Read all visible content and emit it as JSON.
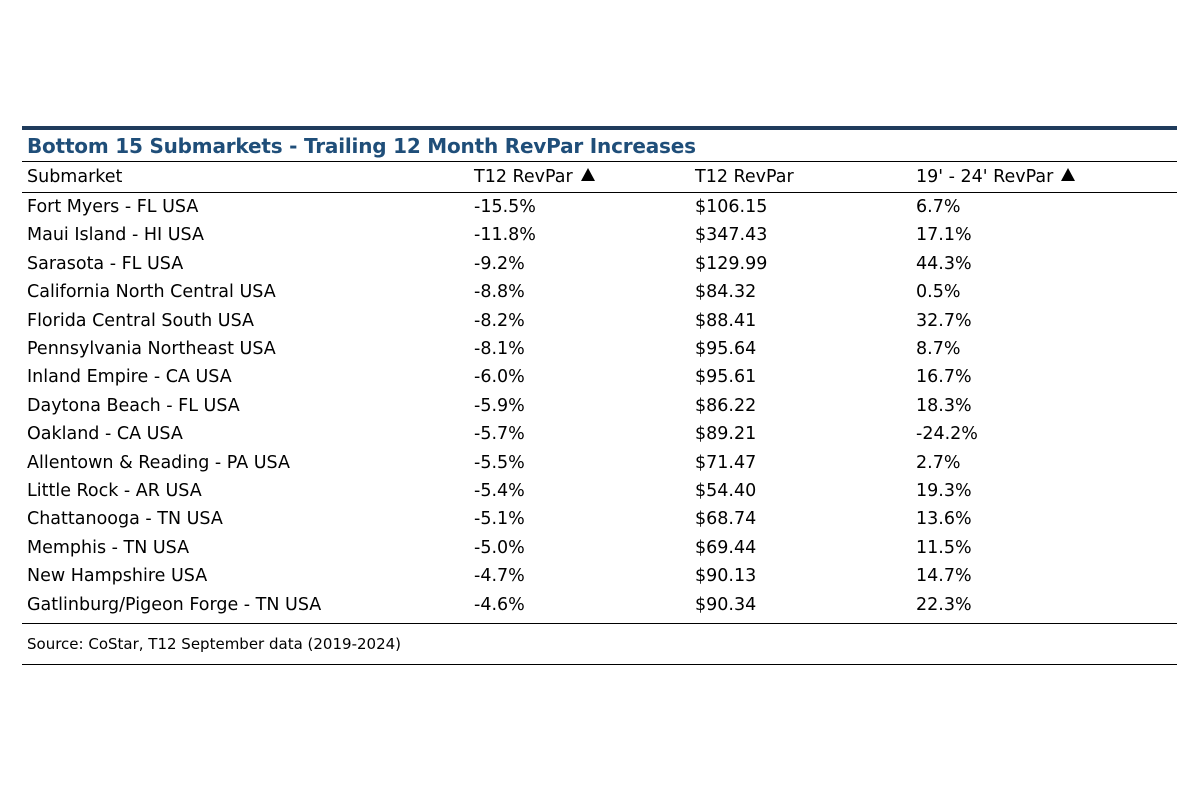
{
  "chart_data": {
    "type": "table",
    "title": "Bottom 15 Submarkets - Trailing 12 Month RevPar Increases",
    "columns": [
      {
        "label": "Submarket",
        "sort_indicator": false
      },
      {
        "label": "T12 RevPar",
        "sort_indicator": true
      },
      {
        "label": "T12 RevPar",
        "sort_indicator": false
      },
      {
        "label": "19' - 24' RevPar",
        "sort_indicator": true
      }
    ],
    "sort_indicator_icon": "triangle-up-icon",
    "rows": [
      {
        "submarket": "Fort Myers - FL USA",
        "t12_revpar_change": "-15.5%",
        "t12_revpar": "$106.15",
        "revpar_19_24": "6.7%"
      },
      {
        "submarket": "Maui Island - HI USA",
        "t12_revpar_change": "-11.8%",
        "t12_revpar": "$347.43",
        "revpar_19_24": "17.1%"
      },
      {
        "submarket": "Sarasota - FL USA",
        "t12_revpar_change": "-9.2%",
        "t12_revpar": "$129.99",
        "revpar_19_24": "44.3%"
      },
      {
        "submarket": "California North Central USA",
        "t12_revpar_change": "-8.8%",
        "t12_revpar": "$84.32",
        "revpar_19_24": "0.5%"
      },
      {
        "submarket": "Florida Central South USA",
        "t12_revpar_change": "-8.2%",
        "t12_revpar": "$88.41",
        "revpar_19_24": "32.7%"
      },
      {
        "submarket": "Pennsylvania Northeast USA",
        "t12_revpar_change": "-8.1%",
        "t12_revpar": "$95.64",
        "revpar_19_24": "8.7%"
      },
      {
        "submarket": "Inland Empire - CA USA",
        "t12_revpar_change": "-6.0%",
        "t12_revpar": "$95.61",
        "revpar_19_24": "16.7%"
      },
      {
        "submarket": "Daytona Beach - FL USA",
        "t12_revpar_change": "-5.9%",
        "t12_revpar": "$86.22",
        "revpar_19_24": "18.3%"
      },
      {
        "submarket": "Oakland - CA USA",
        "t12_revpar_change": "-5.7%",
        "t12_revpar": "$89.21",
        "revpar_19_24": "-24.2%"
      },
      {
        "submarket": "Allentown & Reading - PA USA",
        "t12_revpar_change": "-5.5%",
        "t12_revpar": "$71.47",
        "revpar_19_24": "2.7%"
      },
      {
        "submarket": "Little Rock - AR USA",
        "t12_revpar_change": "-5.4%",
        "t12_revpar": "$54.40",
        "revpar_19_24": "19.3%"
      },
      {
        "submarket": "Chattanooga - TN USA",
        "t12_revpar_change": "-5.1%",
        "t12_revpar": "$68.74",
        "revpar_19_24": "13.6%"
      },
      {
        "submarket": "Memphis - TN USA",
        "t12_revpar_change": "-5.0%",
        "t12_revpar": "$69.44",
        "revpar_19_24": "11.5%"
      },
      {
        "submarket": "New Hampshire USA",
        "t12_revpar_change": "-4.7%",
        "t12_revpar": "$90.13",
        "revpar_19_24": "14.7%"
      },
      {
        "submarket": "Gatlinburg/Pigeon Forge - TN USA",
        "t12_revpar_change": "-4.6%",
        "t12_revpar": "$90.34",
        "revpar_19_24": "22.3%"
      }
    ],
    "source": "Source: CoStar, T12 September data (2019-2024)"
  },
  "colors": {
    "title_text": "#1f4e79",
    "top_rule": "#1f3b5c",
    "rules": "#000000"
  }
}
